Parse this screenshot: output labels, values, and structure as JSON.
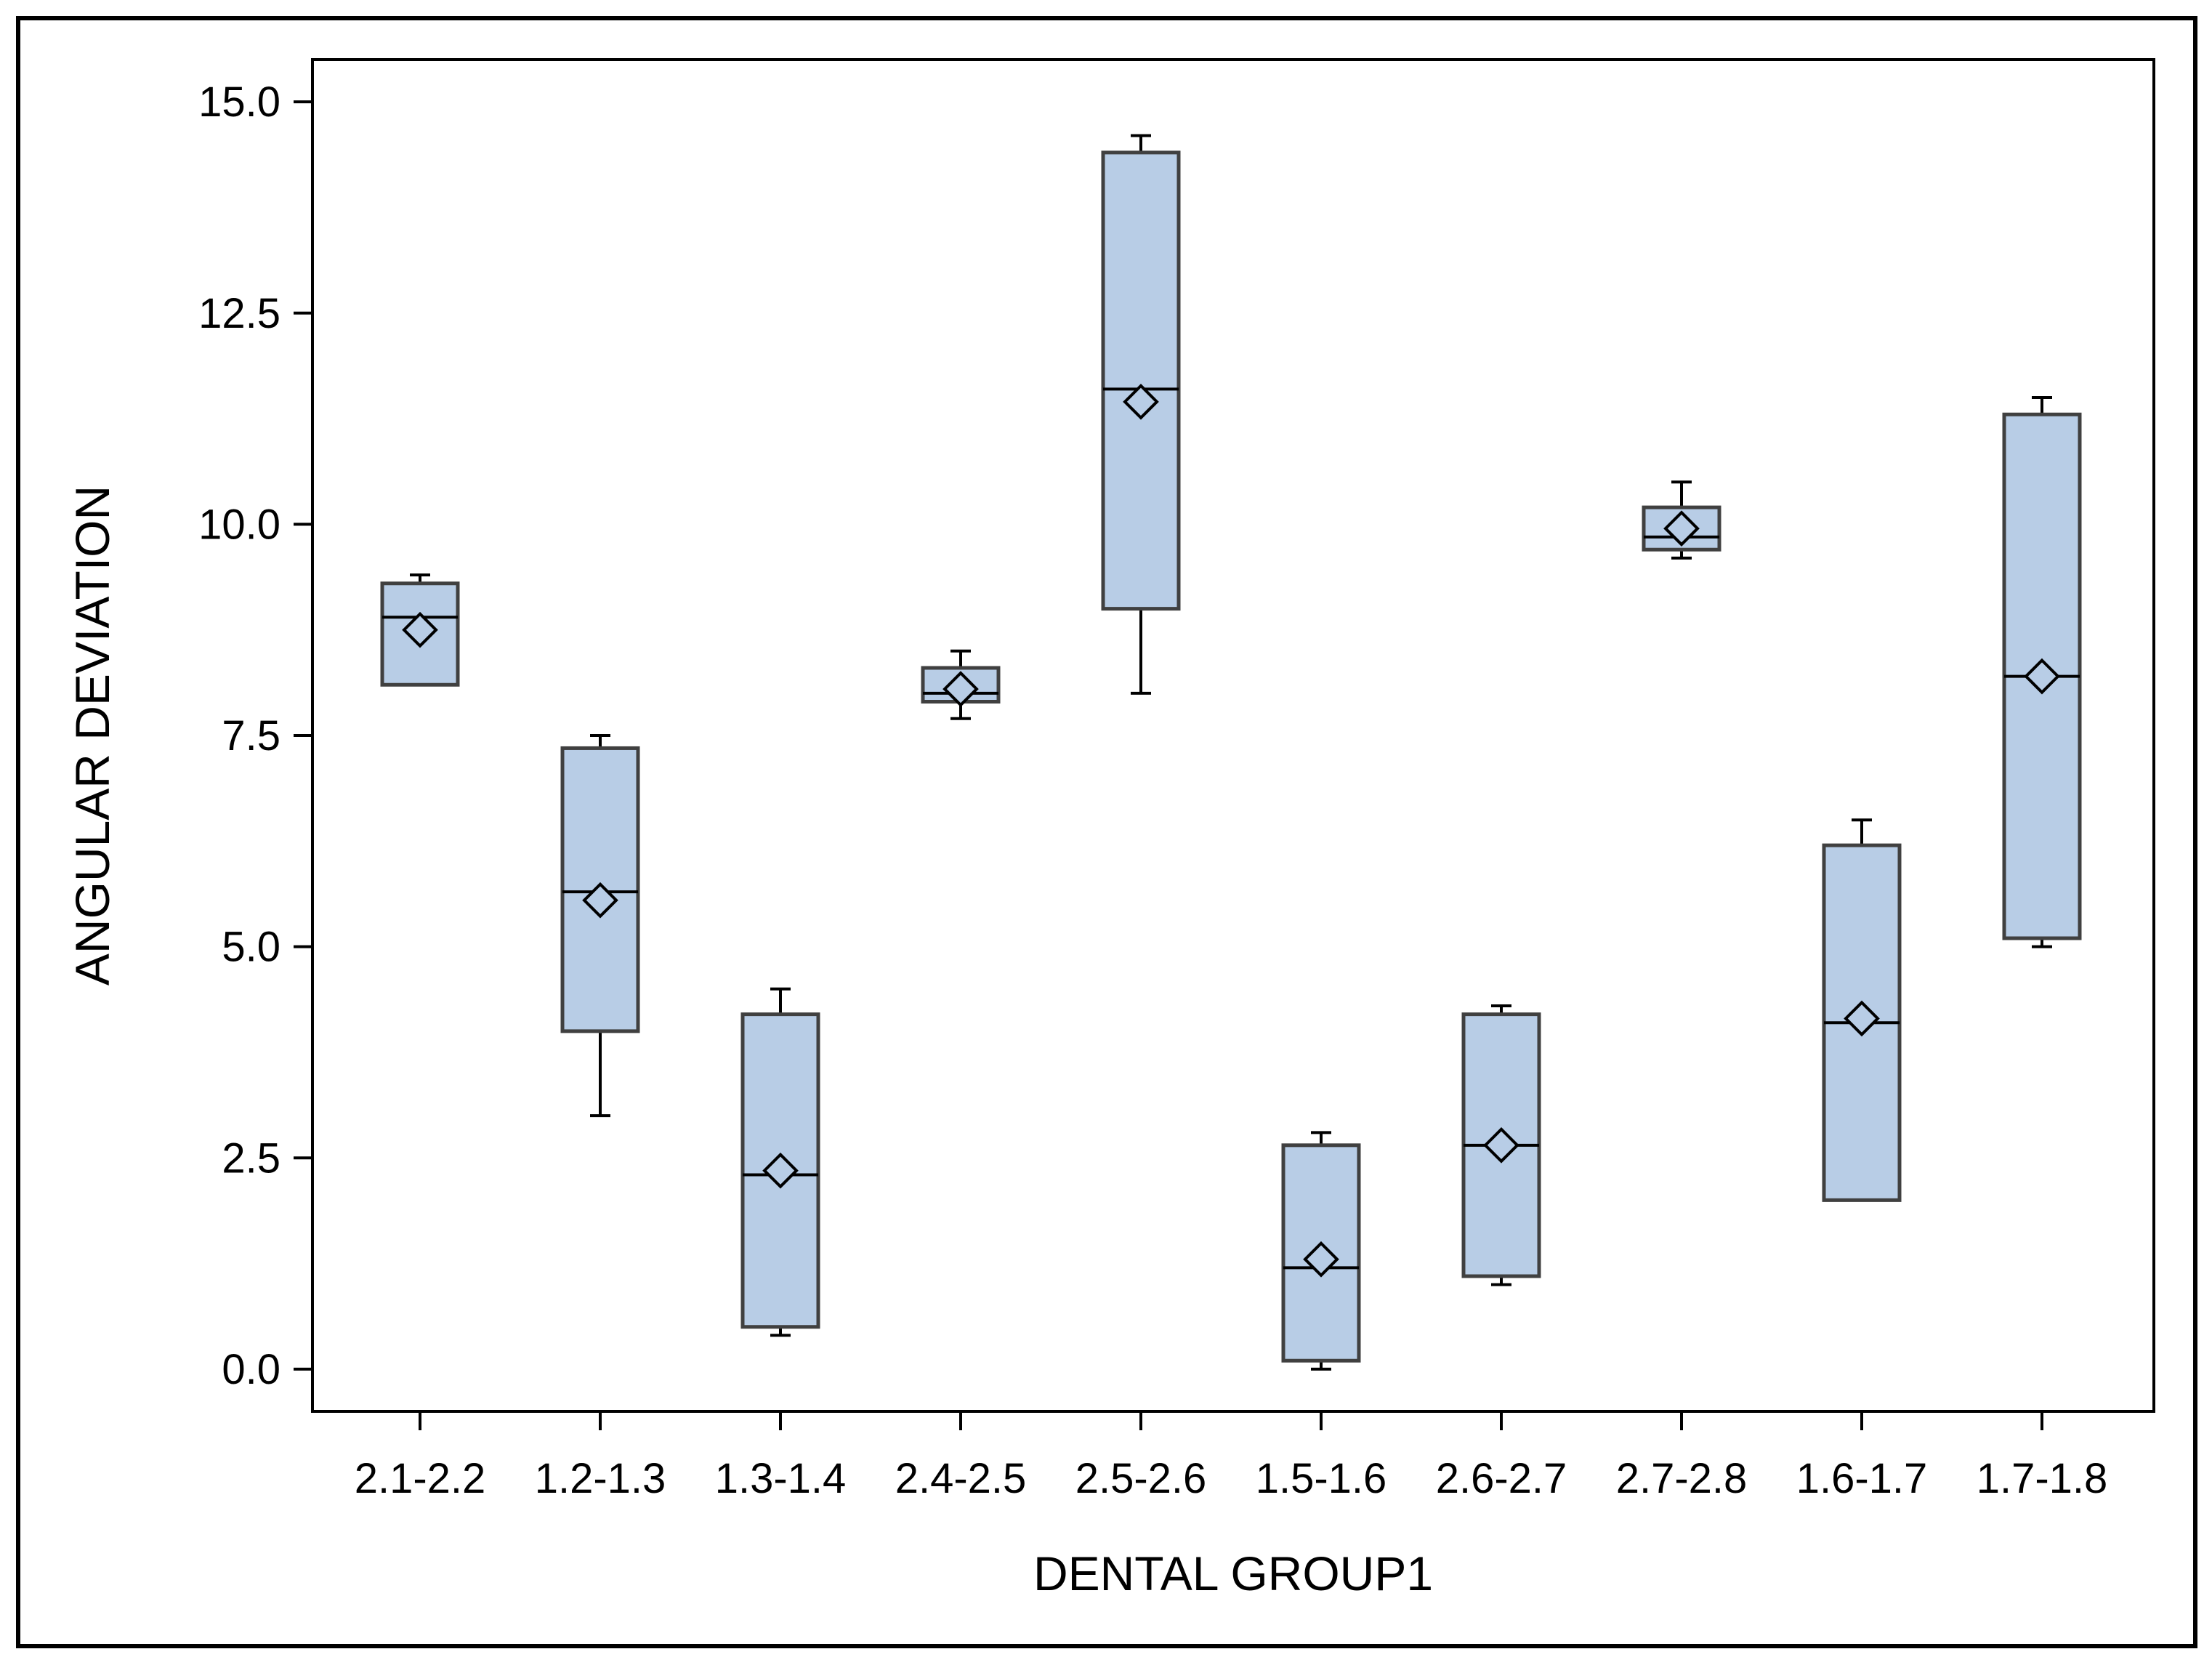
{
  "chart_data": {
    "type": "box",
    "title": "",
    "xlabel": "DENTAL GROUP1",
    "ylabel": "ANGULAR DEVIATION",
    "ylim": [
      -0.5,
      15.5
    ],
    "y_ticks": [
      "0.0",
      "2.5",
      "5.0",
      "7.5",
      "10.0",
      "12.5",
      "15.0"
    ],
    "grid": false,
    "legend": "none",
    "colors": {
      "box_fill": "#b8cde6",
      "box_stroke": "#404040",
      "line": "#000000",
      "background": "#ffffff"
    },
    "categories": [
      "2.1-2.2",
      "1.2-1.3",
      "1.3-1.4",
      "2.4-2.5",
      "2.5-2.6",
      "1.5-1.6",
      "2.6-2.7",
      "2.7-2.8",
      "1.6-1.7",
      "1.7-1.8"
    ],
    "boxes": [
      {
        "category": "2.1-2.2",
        "min": 8.1,
        "q1": 8.1,
        "median": 8.9,
        "q3": 9.3,
        "max": 9.4,
        "mean": 8.75
      },
      {
        "category": "1.2-1.3",
        "min": 3.0,
        "q1": 4.0,
        "median": 5.65,
        "q3": 7.35,
        "max": 7.5,
        "mean": 5.55
      },
      {
        "category": "1.3-1.4",
        "min": 0.4,
        "q1": 0.5,
        "median": 2.3,
        "q3": 4.2,
        "max": 4.5,
        "mean": 2.35
      },
      {
        "category": "2.4-2.5",
        "min": 7.7,
        "q1": 7.9,
        "median": 8.0,
        "q3": 8.3,
        "max": 8.5,
        "mean": 8.05
      },
      {
        "category": "2.5-2.6",
        "min": 8.0,
        "q1": 9.0,
        "median": 11.6,
        "q3": 14.4,
        "max": 14.6,
        "mean": 11.45
      },
      {
        "category": "1.5-1.6",
        "min": 0.0,
        "q1": 0.1,
        "median": 1.2,
        "q3": 2.65,
        "max": 2.8,
        "mean": 1.3
      },
      {
        "category": "2.6-2.7",
        "min": 1.0,
        "q1": 1.1,
        "median": 2.65,
        "q3": 4.2,
        "max": 4.3,
        "mean": 2.65
      },
      {
        "category": "2.7-2.8",
        "min": 9.6,
        "q1": 9.7,
        "median": 9.85,
        "q3": 10.2,
        "max": 10.5,
        "mean": 9.95
      },
      {
        "category": "1.6-1.7",
        "min": 2.0,
        "q1": 2.0,
        "median": 4.1,
        "q3": 6.2,
        "max": 6.5,
        "mean": 4.15
      },
      {
        "category": "1.7-1.8",
        "min": 5.0,
        "q1": 5.1,
        "median": 8.2,
        "q3": 11.3,
        "max": 11.5,
        "mean": 8.2
      }
    ]
  }
}
